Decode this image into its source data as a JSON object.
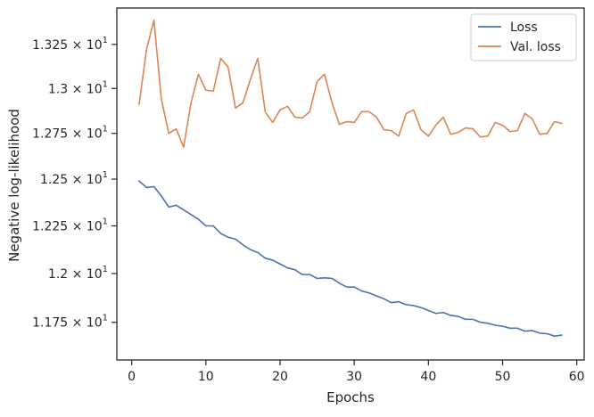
{
  "chart_data": {
    "type": "line",
    "xlabel": "Epochs",
    "ylabel": "Negative log-likelihood",
    "y_scale": "log",
    "xlim": [
      -2.0,
      61.0
    ],
    "ylim": [
      11.56,
      13.46
    ],
    "x_ticks": [
      0,
      10,
      20,
      30,
      40,
      50,
      60
    ],
    "x_tick_labels": [
      "0",
      "10",
      "20",
      "30",
      "40",
      "50",
      "60"
    ],
    "y_ticks": [
      {
        "value": 11.75,
        "mantissa": "1.175",
        "times": "×",
        "base": "10",
        "exp": "1"
      },
      {
        "value": 12.0,
        "mantissa": "1.2",
        "times": "×",
        "base": "10",
        "exp": "1"
      },
      {
        "value": 12.25,
        "mantissa": "1.225",
        "times": "×",
        "base": "10",
        "exp": "1"
      },
      {
        "value": 12.5,
        "mantissa": "1.25",
        "times": "×",
        "base": "10",
        "exp": "1"
      },
      {
        "value": 12.75,
        "mantissa": "1.275",
        "times": "×",
        "base": "10",
        "exp": "1"
      },
      {
        "value": 13.0,
        "mantissa": "1.3",
        "times": "×",
        "base": "10",
        "exp": "1"
      },
      {
        "value": 13.25,
        "mantissa": "1.325",
        "times": "×",
        "base": "10",
        "exp": "1"
      }
    ],
    "grid": false,
    "legend_position": "top-right",
    "x": [
      1,
      2,
      3,
      4,
      5,
      6,
      7,
      8,
      9,
      10,
      11,
      12,
      13,
      14,
      15,
      16,
      17,
      18,
      19,
      20,
      21,
      22,
      23,
      24,
      25,
      26,
      27,
      28,
      29,
      30,
      31,
      32,
      33,
      34,
      35,
      36,
      37,
      38,
      39,
      40,
      41,
      42,
      43,
      44,
      45,
      46,
      47,
      48,
      49,
      50,
      51,
      52,
      53,
      54,
      55,
      56,
      57,
      58
    ],
    "series": [
      {
        "name": "Loss",
        "color": "#4c72b0",
        "values": [
          12.49,
          12.455,
          12.46,
          12.41,
          12.35,
          12.36,
          12.335,
          12.31,
          12.285,
          12.25,
          12.25,
          12.21,
          12.19,
          12.18,
          12.15,
          12.125,
          12.11,
          12.08,
          12.07,
          12.05,
          12.03,
          12.02,
          11.995,
          11.995,
          11.975,
          11.978,
          11.975,
          11.95,
          11.93,
          11.93,
          11.91,
          11.9,
          11.885,
          11.87,
          11.85,
          11.855,
          11.84,
          11.835,
          11.825,
          11.81,
          11.795,
          11.8,
          11.785,
          11.78,
          11.765,
          11.765,
          11.75,
          11.745,
          11.735,
          11.73,
          11.72,
          11.72,
          11.705,
          11.708,
          11.695,
          11.692,
          11.68,
          11.685
        ]
      },
      {
        "name": "Val. loss",
        "color": "#dd8452",
        "values": [
          12.91,
          13.22,
          13.39,
          12.94,
          12.75,
          12.775,
          12.675,
          12.92,
          13.08,
          12.99,
          12.985,
          13.17,
          13.12,
          12.89,
          12.92,
          13.05,
          13.17,
          12.87,
          12.81,
          12.88,
          12.9,
          12.84,
          12.835,
          12.87,
          13.04,
          13.08,
          12.92,
          12.8,
          12.815,
          12.81,
          12.87,
          12.87,
          12.84,
          12.77,
          12.765,
          12.735,
          12.86,
          12.88,
          12.77,
          12.735,
          12.795,
          12.84,
          12.745,
          12.755,
          12.78,
          12.775,
          12.73,
          12.735,
          12.81,
          12.795,
          12.76,
          12.765,
          12.86,
          12.83,
          12.745,
          12.75,
          12.815,
          12.805
        ]
      }
    ]
  }
}
